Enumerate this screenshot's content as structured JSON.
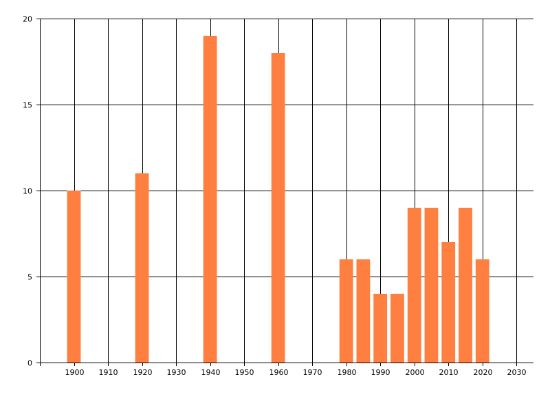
{
  "chart_data": {
    "type": "bar",
    "x": [
      1900,
      1920,
      1940,
      1960,
      1980,
      1985,
      1990,
      1995,
      2000,
      2005,
      2010,
      2015,
      2020
    ],
    "values": [
      10,
      11,
      19,
      18,
      6,
      6,
      4,
      4,
      9,
      9,
      7,
      9,
      6
    ],
    "xlim": [
      1890,
      2035
    ],
    "ylim": [
      0,
      20
    ],
    "xticks": [
      "1900",
      "1910",
      "1920",
      "1930",
      "1940",
      "1950",
      "1960",
      "1970",
      "1980",
      "1990",
      "2000",
      "2010",
      "2020",
      "2030"
    ],
    "yticks": [
      "0",
      "5",
      "10",
      "15",
      "20"
    ],
    "grid": true,
    "bar_color": "#FF7F40",
    "title": "",
    "xlabel": "",
    "ylabel": ""
  }
}
